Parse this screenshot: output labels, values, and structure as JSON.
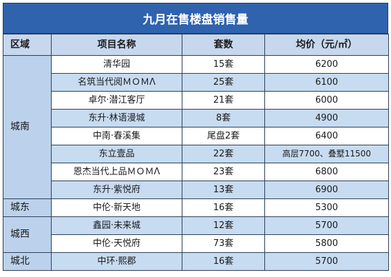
{
  "title": "九月在售楼盘销售量",
  "headers": [
    "区域",
    "项目名称",
    "套数",
    "均价（元/㎡）"
  ],
  "groups": [
    {
      "region": "城南",
      "rows": [
        {
          "name": "清华园",
          "units": "15套",
          "price": "6200"
        },
        {
          "name": "名筑当代阅ＭＯＭΛ",
          "units": "25套",
          "price": "6100"
        },
        {
          "name": "卓尔·潜江客厅",
          "units": "21套",
          "price": "6000"
        },
        {
          "name": "东升·林语漫城",
          "units": "8套",
          "price": "4900"
        },
        {
          "name": "中南·春溪集",
          "units": "尾盘2套",
          "price": "6400"
        },
        {
          "name": "东立壹品",
          "units": "22套",
          "price": "高层7700、叠墅11500"
        },
        {
          "name": "恩杰当代上品ＭＯＭΛ",
          "units": "23套",
          "price": "6800"
        },
        {
          "name": "东升·紫悦府",
          "units": "13套",
          "price": "6900"
        }
      ]
    },
    {
      "region": "城东",
      "rows": [
        {
          "name": "中伦·新天地",
          "units": "16套",
          "price": "5300"
        }
      ]
    },
    {
      "region": "城西",
      "rows": [
        {
          "name": "鑫园·未来城",
          "units": "12套",
          "price": "5700"
        },
        {
          "name": "中伦·天悦府",
          "units": "73套",
          "price": "5800"
        }
      ]
    },
    {
      "region": "城北",
      "rows": [
        {
          "name": "中环·熙郡",
          "units": "16套",
          "price": "5700"
        }
      ]
    }
  ]
}
